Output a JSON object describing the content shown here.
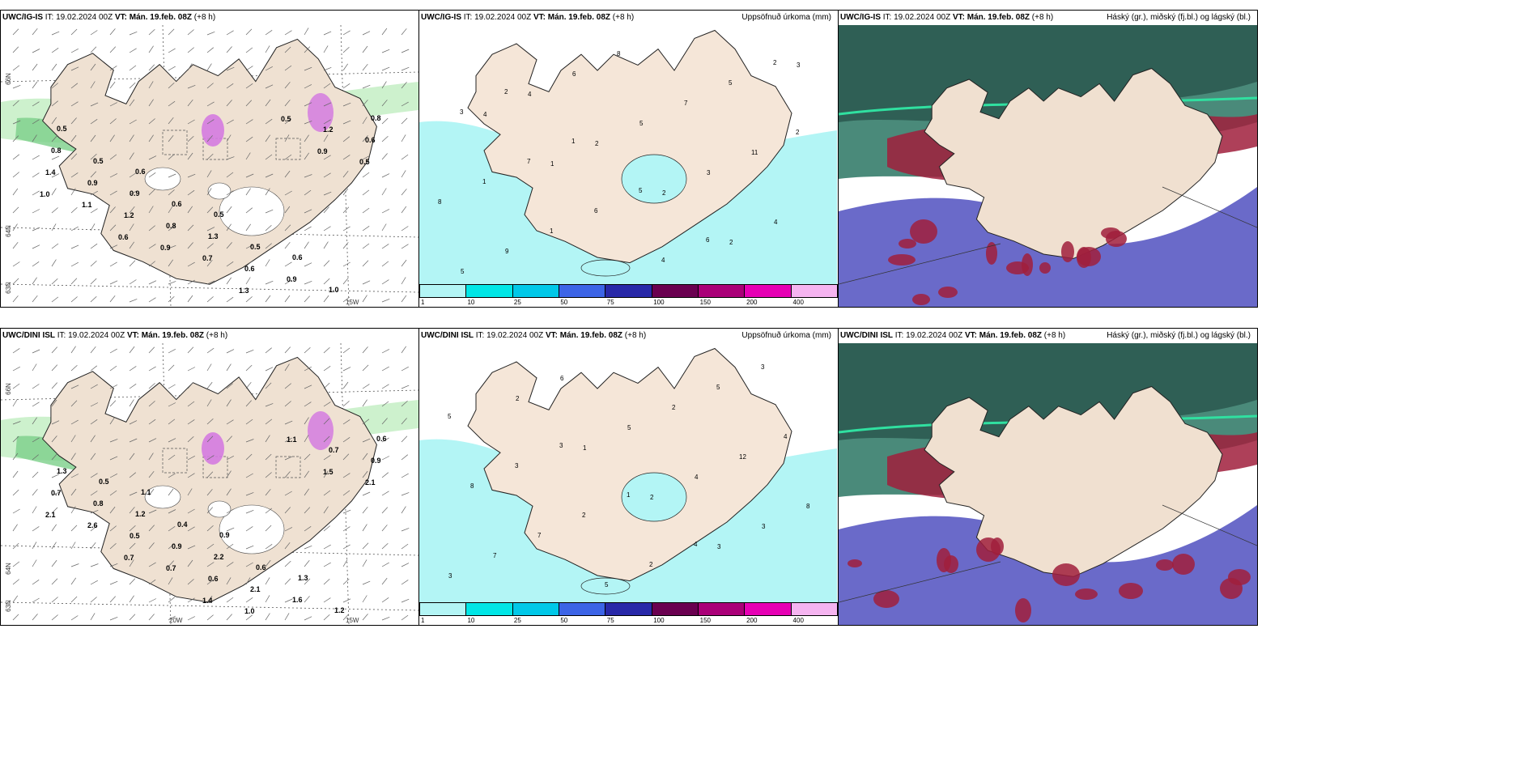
{
  "header_common": {
    "it": "IT: 19.02.2024 00Z",
    "vt_label": "VT:",
    "vt": "Mán. 19.feb. 08Z",
    "lead": "(+8 h)"
  },
  "rows": [
    {
      "model": "UWC/IG-IS",
      "panels": [
        {
          "type": "wind-precip",
          "right_title": ""
        },
        {
          "type": "accum-precip",
          "right_title": "Uppsöfnuð úrkoma (mm)"
        },
        {
          "type": "clouds",
          "right_title": "Háský (gr.), miðský (fj.bl.) og lágský (bl.)"
        }
      ]
    },
    {
      "model": "UWC/DINI ISL",
      "panels": [
        {
          "type": "wind-precip",
          "right_title": ""
        },
        {
          "type": "accum-precip",
          "right_title": "Uppsöfnuð úrkoma (mm)"
        },
        {
          "type": "clouds",
          "right_title": "Háský (gr.), miðský (fj.bl.) og lágský (bl.)"
        }
      ]
    }
  ],
  "legend": {
    "labels": [
      "1",
      "10",
      "25",
      "50",
      "75",
      "100",
      "150",
      "200",
      "400"
    ],
    "colors": [
      "#b3f5f5",
      "#00e6e6",
      "#00c8e8",
      "#3c64e6",
      "#2828a8",
      "#6a0050",
      "#aa0078",
      "#e600b4",
      "#f5b4f0"
    ]
  },
  "axis_labels": {
    "lat66": "66N",
    "lat64": "64N",
    "lat63": "63N",
    "lon20": "20W",
    "lon15": "15W"
  },
  "top_left_values": [
    "0.5",
    "0.6",
    "0.5",
    "0.6",
    "0.8",
    "0.5",
    "0.6",
    "0.5",
    "1.0",
    "0.8",
    "0.9",
    "1.3",
    "0.9",
    "0.6",
    "0.9",
    "0.8",
    "0.6",
    "1.2",
    "1.4",
    "1.2",
    "0.7",
    "0.5",
    "0.5",
    "1.1",
    "0.9",
    "1.3",
    "0.9",
    "1.0",
    "0.6"
  ],
  "bottom_left_values": [
    "1.1",
    "0.9",
    "1.3",
    "0.6",
    "0.5",
    "0.4",
    "0.6",
    "1.2",
    "1.3",
    "1.2",
    "2.2",
    "1.6",
    "0.9",
    "0.8",
    "0.9",
    "2.1",
    "0.7",
    "0.7",
    "0.5",
    "0.6",
    "1.1",
    "2.1",
    "2.6",
    "0.7",
    "1.0",
    "1.5",
    "2.1",
    "0.7",
    "1.4"
  ],
  "top_mid_values": [
    "2",
    "1",
    "5",
    "6",
    "2",
    "3",
    "7",
    "6",
    "4",
    "5",
    "2",
    "1",
    "1",
    "8",
    "7",
    "11",
    "8",
    "9",
    "6",
    "5",
    "3",
    "4",
    "5",
    "4",
    "2",
    "2",
    "2",
    "3",
    "4",
    "1"
  ],
  "bottom_mid_values": [
    "3",
    "1",
    "4",
    "3",
    "5",
    "3",
    "2",
    "2",
    "5",
    "4",
    "8",
    "7",
    "5",
    "2",
    "12",
    "8",
    "7",
    "6",
    "5",
    "4",
    "3",
    "3",
    "2",
    "1",
    "2",
    "3"
  ]
}
